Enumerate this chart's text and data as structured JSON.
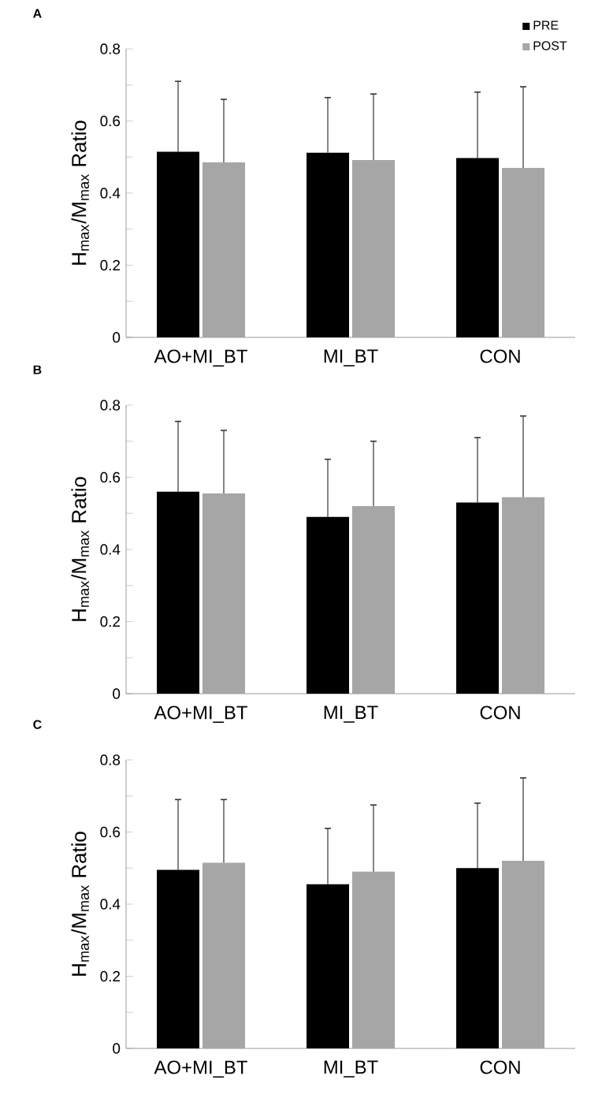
{
  "chart_data": [
    {
      "type": "bar",
      "title": "A",
      "ylabel": "H$_{max}$/M$_{max}$ Ratio",
      "categories": [
        "AO+MI_BT",
        "MI_BT",
        "CON"
      ],
      "ylim": [
        0,
        0.8
      ],
      "yticks": [
        0,
        {
          "value": 0.1,
          "label": null
        },
        0.2,
        {
          "value": 0.3,
          "label": null
        },
        0.4,
        {
          "value": 0.5,
          "label": null
        },
        0.6,
        {
          "value": 0.7,
          "label": null
        },
        0.8
      ],
      "legend": "top right",
      "series": [
        {
          "name": "PRE",
          "color": "#000000",
          "values": [
            0.515,
            0.512,
            0.497
          ],
          "errors": [
            [
              0.515,
              0.71
            ],
            [
              0.512,
              0.665
            ],
            [
              0.497,
              0.68
            ]
          ]
        },
        {
          "name": "POST",
          "color": "#a6a6a6",
          "values": [
            0.485,
            0.492,
            0.47
          ],
          "errors": [
            [
              0.485,
              0.66
            ],
            [
              0.492,
              0.675
            ],
            [
              0.47,
              0.695
            ]
          ]
        }
      ]
    },
    {
      "type": "bar",
      "title": "B",
      "ylabel": "H$_{max}$/M$_{max}$ Ratio",
      "categories": [
        "AO+MI_BT",
        "MI_BT",
        "CON"
      ],
      "ylim": [
        0,
        0.8
      ],
      "yticks": [
        0,
        {
          "value": 0.1,
          "label": null
        },
        0.2,
        {
          "value": 0.3,
          "label": null
        },
        0.4,
        {
          "value": 0.5,
          "label": null
        },
        0.6,
        {
          "value": 0.7,
          "label": null
        },
        0.8
      ],
      "series": [
        {
          "color": "#000000",
          "values": [
            0.56,
            0.49,
            0.53
          ],
          "errors": [
            [
              0.56,
              0.755
            ],
            [
              0.49,
              0.65
            ],
            [
              0.53,
              0.71
            ]
          ]
        },
        {
          "color": "#a6a6a6",
          "values": [
            0.555,
            0.52,
            0.545
          ],
          "errors": [
            [
              0.555,
              0.73
            ],
            [
              0.52,
              0.7
            ],
            [
              0.545,
              0.77
            ]
          ]
        }
      ]
    },
    {
      "type": "bar",
      "title": "C",
      "ylabel": "H$_{max}$/M$_{max}$ Ratio",
      "categories": [
        "AO+MI_BT",
        "MI_BT",
        "CON"
      ],
      "ylim": [
        0,
        0.8
      ],
      "yticks": [
        0,
        {
          "value": 0.1,
          "label": null
        },
        0.2,
        {
          "value": 0.3,
          "label": null
        },
        0.4,
        {
          "value": 0.5,
          "label": null
        },
        0.6,
        {
          "value": 0.7,
          "label": null
        },
        0.8
      ],
      "series": [
        {
          "color": "#000000",
          "values": [
            0.495,
            0.455,
            0.5
          ],
          "errors": [
            [
              0.495,
              0.69
            ],
            [
              0.455,
              0.61
            ],
            [
              0.5,
              0.68
            ]
          ]
        },
        {
          "color": "#a6a6a6",
          "values": [
            0.515,
            0.49,
            0.52
          ],
          "errors": [
            [
              0.515,
              0.69
            ],
            [
              0.49,
              0.675
            ],
            [
              0.52,
              0.75
            ]
          ]
        }
      ]
    }
  ]
}
